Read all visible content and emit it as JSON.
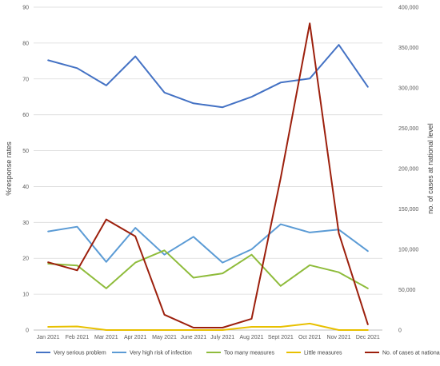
{
  "chart_data": {
    "type": "line",
    "categories": [
      "Jan 2021",
      "Feb 2021",
      "Mar 2021",
      "Apr 2021",
      "May 2021",
      "June 2021",
      "July 2021",
      "Aug 2021",
      "Sept 2021",
      "Oct 2021",
      "Nov 2021",
      "Dec 2021"
    ],
    "ylabel_left": "%response rates",
    "ylabel_right": "no. of cases at national level",
    "ylim_left": [
      0,
      90
    ],
    "yticks_left": [
      "0",
      "10",
      "20",
      "30",
      "40",
      "50",
      "60",
      "70",
      "80",
      "90"
    ],
    "ylim_right": [
      0,
      400000
    ],
    "yticks_right": [
      "0",
      "50,000",
      "100,000",
      "150,000",
      "200,000",
      "250,000",
      "300,000",
      "350,000",
      "400,000"
    ],
    "grid": true,
    "legend_position": "bottom",
    "series": [
      {
        "name": "Very serious problem",
        "axis": "left",
        "color": "#4472c4",
        "values": [
          75.2,
          73.0,
          68.2,
          76.3,
          66.2,
          63.2,
          62.1,
          65.0,
          69.0,
          70.1,
          79.5,
          67.8
        ]
      },
      {
        "name": "Very high risk of infection",
        "axis": "left",
        "color": "#5b9bd5",
        "values": [
          27.5,
          28.8,
          19.0,
          28.5,
          21.0,
          26.0,
          18.8,
          22.5,
          29.5,
          27.2,
          28.0,
          22.0
        ]
      },
      {
        "name": "Too many measures",
        "axis": "left",
        "color": "#8fbc3c",
        "values": [
          18.5,
          18.0,
          11.6,
          18.8,
          22.2,
          14.6,
          15.8,
          21.0,
          12.3,
          18.1,
          16.1,
          11.6
        ]
      },
      {
        "name": "Little measures",
        "axis": "left",
        "color": "#e8c000",
        "values": [
          0.9,
          1.0,
          0.0,
          0.0,
          0.0,
          0.0,
          0.0,
          0.9,
          0.9,
          1.8,
          0.0,
          0.0
        ]
      },
      {
        "name": "No. of cases at national level",
        "axis": "right",
        "color": "#9c1f0c",
        "values": [
          84000,
          74000,
          137000,
          116000,
          19000,
          3000,
          3000,
          14000,
          188000,
          380000,
          120000,
          7000
        ]
      }
    ]
  }
}
